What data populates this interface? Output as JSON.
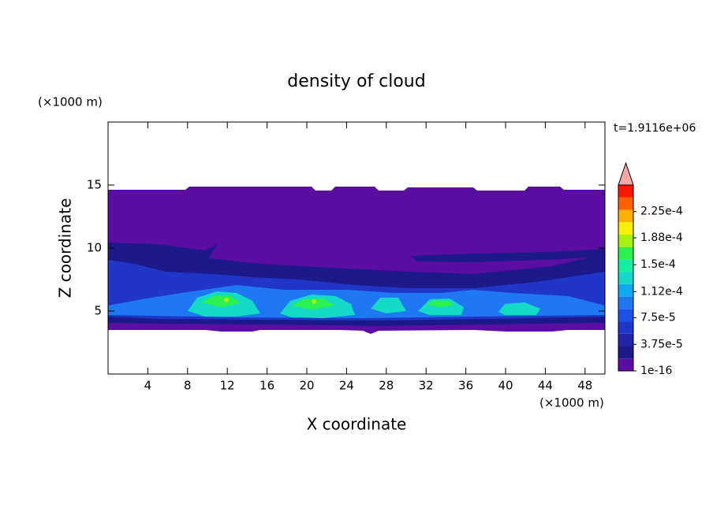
{
  "chart_data": {
    "type": "contour",
    "title": "density of cloud",
    "x_label": "X coordinate",
    "y_label": "Z coordinate",
    "x_unit": "(×1000 m)",
    "y_unit": "(×1000 m)",
    "time_label": "t=1.9116e+06",
    "xlim": [
      0,
      50
    ],
    "ylim": [
      0,
      20
    ],
    "xticks": [
      4,
      8,
      12,
      16,
      20,
      24,
      28,
      32,
      36,
      40,
      44,
      48
    ],
    "yticks": [
      5,
      10,
      15
    ],
    "colorbar": {
      "lim": [
        0,
        0.0002625
      ],
      "colors": [
        "#5b0da3",
        "#1c1a8a",
        "#2424a8",
        "#2036c8",
        "#1e52e6",
        "#1e78f2",
        "#10a8f0",
        "#14d8c8",
        "#14eea0",
        "#2cf050",
        "#a8f010",
        "#f8f000",
        "#ffb000",
        "#ff6000",
        "#ff1800"
      ],
      "extend_color": "#f4a8a8",
      "ticks": [
        {
          "value": 1e-16,
          "label": "1e-16"
        },
        {
          "value": 3.75e-05,
          "label": "3.75e-5"
        },
        {
          "value": 7.5e-05,
          "label": "7.5e-5"
        },
        {
          "value": 0.000112,
          "label": "1.12e-4"
        },
        {
          "value": 0.00015,
          "label": "1.5e-4"
        },
        {
          "value": 0.000188,
          "label": "1.88e-4"
        },
        {
          "value": 0.000225,
          "label": "2.25e-4"
        }
      ]
    }
  }
}
